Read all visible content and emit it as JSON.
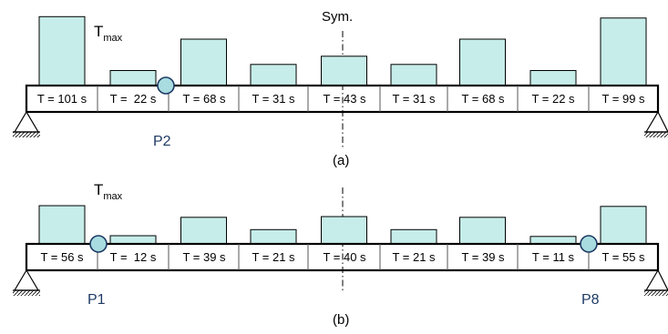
{
  "sym_label": "Sym.",
  "colors": {
    "bar_fill": "#c6ede9",
    "outline": "#000000",
    "hinge_fill": "#a8dce0",
    "hinge_stroke": "#1f3b64",
    "point_label": "#1f3b64"
  },
  "panels": [
    {
      "caption": "(a)",
      "tmax": {
        "main": "T",
        "sub": "max"
      },
      "segments": [
        {
          "label": "T = 101 s",
          "value": 101
        },
        {
          "label": "T =  22 s",
          "value": 22
        },
        {
          "label": "T = 68 s",
          "value": 68
        },
        {
          "label": "T = 31 s",
          "value": 31
        },
        {
          "label": "T = 43 s",
          "value": 43
        },
        {
          "label": "T = 31 s",
          "value": 31
        },
        {
          "label": "T = 68 s",
          "value": 68
        },
        {
          "label": "T = 22 s",
          "value": 22
        },
        {
          "label": "T = 99 s",
          "value": 99
        }
      ],
      "hinges": [
        {
          "after_segment": 2
        }
      ],
      "point_labels": [
        "P2"
      ]
    },
    {
      "caption": "(b)",
      "tmax": {
        "main": "T",
        "sub": "max"
      },
      "segments": [
        {
          "label": "T = 56 s",
          "value": 56
        },
        {
          "label": "T =  12 s",
          "value": 12
        },
        {
          "label": "T = 39 s",
          "value": 39
        },
        {
          "label": "T = 21 s",
          "value": 21
        },
        {
          "label": "T = 40 s",
          "value": 40
        },
        {
          "label": "T = 21 s",
          "value": 21
        },
        {
          "label": "T = 39 s",
          "value": 39
        },
        {
          "label": "T = 11 s",
          "value": 11
        },
        {
          "label": "T = 55 s",
          "value": 55
        }
      ],
      "hinges": [
        {
          "after_segment": 1
        },
        {
          "after_segment": 8
        }
      ],
      "point_labels": [
        "P1",
        "P8"
      ]
    }
  ]
}
